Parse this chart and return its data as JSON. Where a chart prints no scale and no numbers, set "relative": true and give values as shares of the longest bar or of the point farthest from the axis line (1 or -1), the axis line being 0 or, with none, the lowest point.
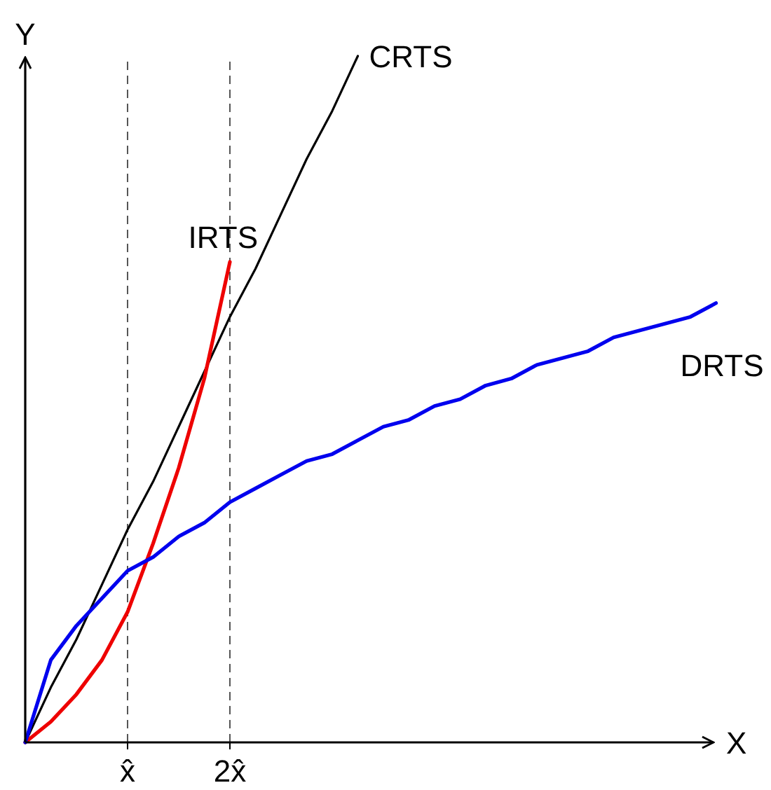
{
  "chart_data": {
    "type": "line",
    "relative": true,
    "xlabel": "X",
    "ylabel": "Y",
    "tick_labels": "x",
    "grid": "x",
    "legend": false,
    "marker": "none",
    "line_style": "solid",
    "categories": [
      null,
      null,
      null,
      null,
      "x̂",
      null,
      null,
      null,
      "2x̂",
      null,
      null,
      null,
      null,
      null,
      null,
      null,
      null,
      null,
      null,
      null,
      null,
      null,
      null,
      null,
      null,
      null,
      null,
      null
    ],
    "series": [
      {
        "name": "CRTS",
        "color": "#000000",
        "values": [
          0,
          0.08,
          0.15,
          0.23,
          0.31,
          0.38,
          0.46,
          0.54,
          0.62,
          0.69,
          0.77,
          0.85,
          0.92,
          1,
          null,
          null,
          null,
          null,
          null,
          null,
          null,
          null,
          null,
          null,
          null,
          null,
          null,
          null
        ]
      },
      {
        "name": "IRTS",
        "color": "#ee0000",
        "values": [
          0,
          0.03,
          0.07,
          0.12,
          0.19,
          0.29,
          0.4,
          0.53,
          0.7,
          null,
          null,
          null,
          null,
          null,
          null,
          null,
          null,
          null,
          null,
          null,
          null,
          null,
          null,
          null,
          null,
          null,
          null,
          null
        ]
      },
      {
        "name": "DRTS",
        "color": "#0000ee",
        "values": [
          0,
          0.12,
          0.17,
          0.21,
          0.25,
          0.27,
          0.3,
          0.32,
          0.35,
          0.37,
          0.39,
          0.41,
          0.42,
          0.44,
          0.46,
          0.47,
          0.49,
          0.5,
          0.52,
          0.53,
          0.55,
          0.56,
          0.57,
          0.59,
          0.6,
          0.61,
          0.62,
          0.64
        ]
      }
    ]
  }
}
